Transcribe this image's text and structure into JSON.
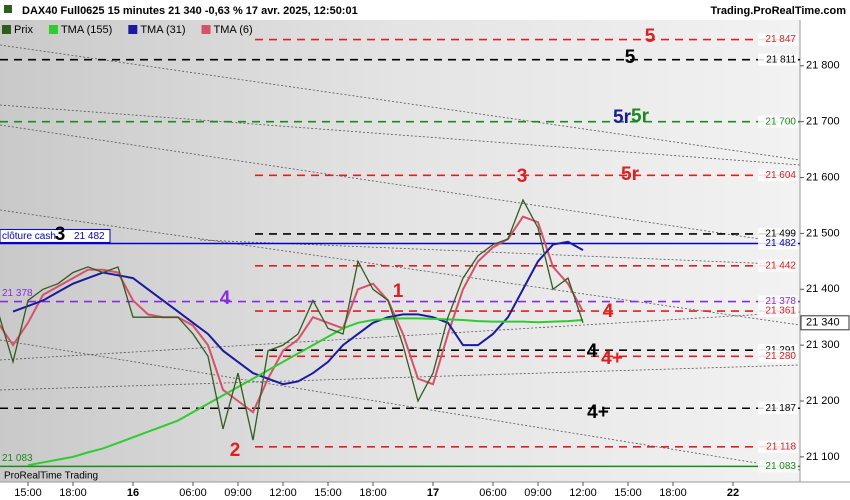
{
  "chart_data": {
    "type": "line",
    "title": "DAX40 Full0625 15 minutes 21 340 -0,63 % 17 avr. 2025, 12:50:01",
    "site": "Trading.ProRealTime.com",
    "footer": "ProRealTime Trading",
    "categories": [
      null,
      null,
      "15:00",
      null,
      null,
      "18:00",
      null,
      null,
      null,
      "16",
      null,
      null,
      null,
      "06:00",
      null,
      null,
      "09:00",
      null,
      null,
      "12:00",
      null,
      null,
      "15:00",
      null,
      null,
      "18:00",
      null,
      null,
      null,
      "17",
      null,
      null,
      null,
      "06:00",
      null,
      null,
      "09:00",
      null,
      null,
      "12:00",
      null,
      null,
      "15:00",
      null,
      null,
      "18:00",
      null,
      null,
      null,
      "22"
    ],
    "series": [
      {
        "name": "Prix",
        "color": "#2f5d1c",
        "values": [
          21360,
          21270,
          21380,
          21400,
          21410,
          21430,
          21440,
          21430,
          21440,
          21350,
          21350,
          21350,
          21350,
          21320,
          21280,
          21150,
          21250,
          21130,
          21290,
          21300,
          21320,
          21380,
          21330,
          21320,
          21450,
          21400,
          21380,
          21300,
          21200,
          21250,
          21350,
          21420,
          21460,
          21480,
          21490,
          21560,
          21510,
          21400,
          21420,
          21340,
          null,
          null,
          null,
          null,
          null,
          null,
          null,
          null,
          null,
          null
        ]
      },
      {
        "name": "TMA (155)",
        "color": "#2ecc2e",
        "values": [
          null,
          null,
          21085,
          21090,
          21095,
          21100,
          21108,
          21115,
          21125,
          21135,
          21145,
          21155,
          21165,
          21180,
          21195,
          21210,
          21225,
          21240,
          21255,
          21270,
          21285,
          21300,
          21315,
          21330,
          21340,
          21345,
          21347,
          21348,
          21348,
          21347,
          21346,
          21345,
          21343,
          21342,
          21342,
          21342,
          21341,
          21342,
          21343,
          21345,
          null,
          null,
          null,
          null,
          null,
          null,
          null,
          null,
          null,
          null
        ]
      },
      {
        "name": "TMA (31)",
        "color": "#1a1aa0",
        "values": [
          null,
          21360,
          21370,
          21380,
          21395,
          21410,
          21420,
          21430,
          21425,
          21420,
          21400,
          21380,
          21360,
          21340,
          21320,
          21290,
          21270,
          21250,
          21240,
          21230,
          21235,
          21250,
          21270,
          21300,
          21320,
          21340,
          21350,
          21355,
          21355,
          21350,
          21340,
          21300,
          21300,
          21320,
          21350,
          21400,
          21450,
          21480,
          21485,
          21470,
          null,
          null,
          null,
          null,
          null,
          null,
          null,
          null,
          null,
          null
        ]
      },
      {
        "name": "TMA (6)",
        "color": "#d9506a",
        "values": [
          21340,
          21300,
          21340,
          21390,
          21405,
          21420,
          21435,
          21435,
          21430,
          21380,
          21355,
          21350,
          21350,
          21335,
          21300,
          21220,
          21200,
          21180,
          21240,
          21290,
          21310,
          21350,
          21340,
          21330,
          21400,
          21410,
          21380,
          21320,
          21240,
          21230,
          21320,
          21400,
          21450,
          21475,
          21490,
          21530,
          21520,
          21440,
          21410,
          21360,
          null,
          null,
          null,
          null,
          null,
          null,
          null,
          null,
          null,
          null
        ]
      }
    ],
    "ylim": [
      21055,
      21882
    ],
    "yticks": [
      {
        "value": 21100,
        "label": "21 100"
      },
      {
        "value": 21200,
        "label": "21 200"
      },
      {
        "value": 21300,
        "label": "21 300"
      },
      {
        "value": 21400,
        "label": "21 400"
      },
      {
        "value": 21500,
        "label": "21 500"
      },
      {
        "value": 21600,
        "label": "21 600"
      },
      {
        "value": 21700,
        "label": "21 700"
      },
      {
        "value": 21800,
        "label": "21 800"
      }
    ],
    "levels": [
      {
        "value": 21847,
        "label": "21 847",
        "color": "#e02020",
        "style": "dashed"
      },
      {
        "value": 21811,
        "label": "21 811",
        "color": "#000000",
        "style": "dashed"
      },
      {
        "value": 21700,
        "label": "21 700",
        "color": "#1a8a1a",
        "style": "dashed"
      },
      {
        "value": 21604,
        "label": "21 604",
        "color": "#e02020",
        "style": "dashed"
      },
      {
        "value": 21499,
        "label": "21 499",
        "color": "#000000",
        "style": "dashed"
      },
      {
        "value": 21482,
        "label": "21 482",
        "color": "#0000cc",
        "style": "solid",
        "name": "clôture cash"
      },
      {
        "value": 21442,
        "label": "21 442",
        "color": "#e02020",
        "style": "dashed"
      },
      {
        "value": 21378,
        "label": "21 378",
        "color": "#8a2be2",
        "style": "dashed"
      },
      {
        "value": 21361,
        "label": "21 361",
        "color": "#e02020",
        "style": "dashed"
      },
      {
        "value": 21291,
        "label": "21 291",
        "color": "#000000",
        "style": "dashed"
      },
      {
        "value": 21280,
        "label": "21 280",
        "color": "#e02020",
        "style": "dashed"
      },
      {
        "value": 21187,
        "label": "21 187",
        "color": "#000000",
        "style": "dashed"
      },
      {
        "value": 21118,
        "label": "21 118",
        "color": "#e02020",
        "style": "dashed"
      },
      {
        "value": 21083,
        "label": "21 083",
        "color": "#1a8a1a",
        "style": "solid"
      }
    ],
    "last": {
      "value": 21340,
      "label": "21 340"
    },
    "annotations": [
      {
        "text": "5",
        "color": "#e02020"
      },
      {
        "text": "5",
        "color": "#000000"
      },
      {
        "text": "5r",
        "color": "#1a1aa0"
      },
      {
        "text": "5r",
        "color": "#1a8a1a"
      },
      {
        "text": "5r",
        "color": "#e02020"
      },
      {
        "text": "3",
        "color": "#e02020"
      },
      {
        "text": "3",
        "color": "#000000"
      },
      {
        "text": "4",
        "color": "#8a2be2"
      },
      {
        "text": "1",
        "color": "#e02020"
      },
      {
        "text": "4",
        "color": "#e02020"
      },
      {
        "text": "4",
        "color": "#000000"
      },
      {
        "text": "4+",
        "color": "#e02020"
      },
      {
        "text": "4+",
        "color": "#000000"
      },
      {
        "text": "2",
        "color": "#e02020"
      }
    ]
  }
}
